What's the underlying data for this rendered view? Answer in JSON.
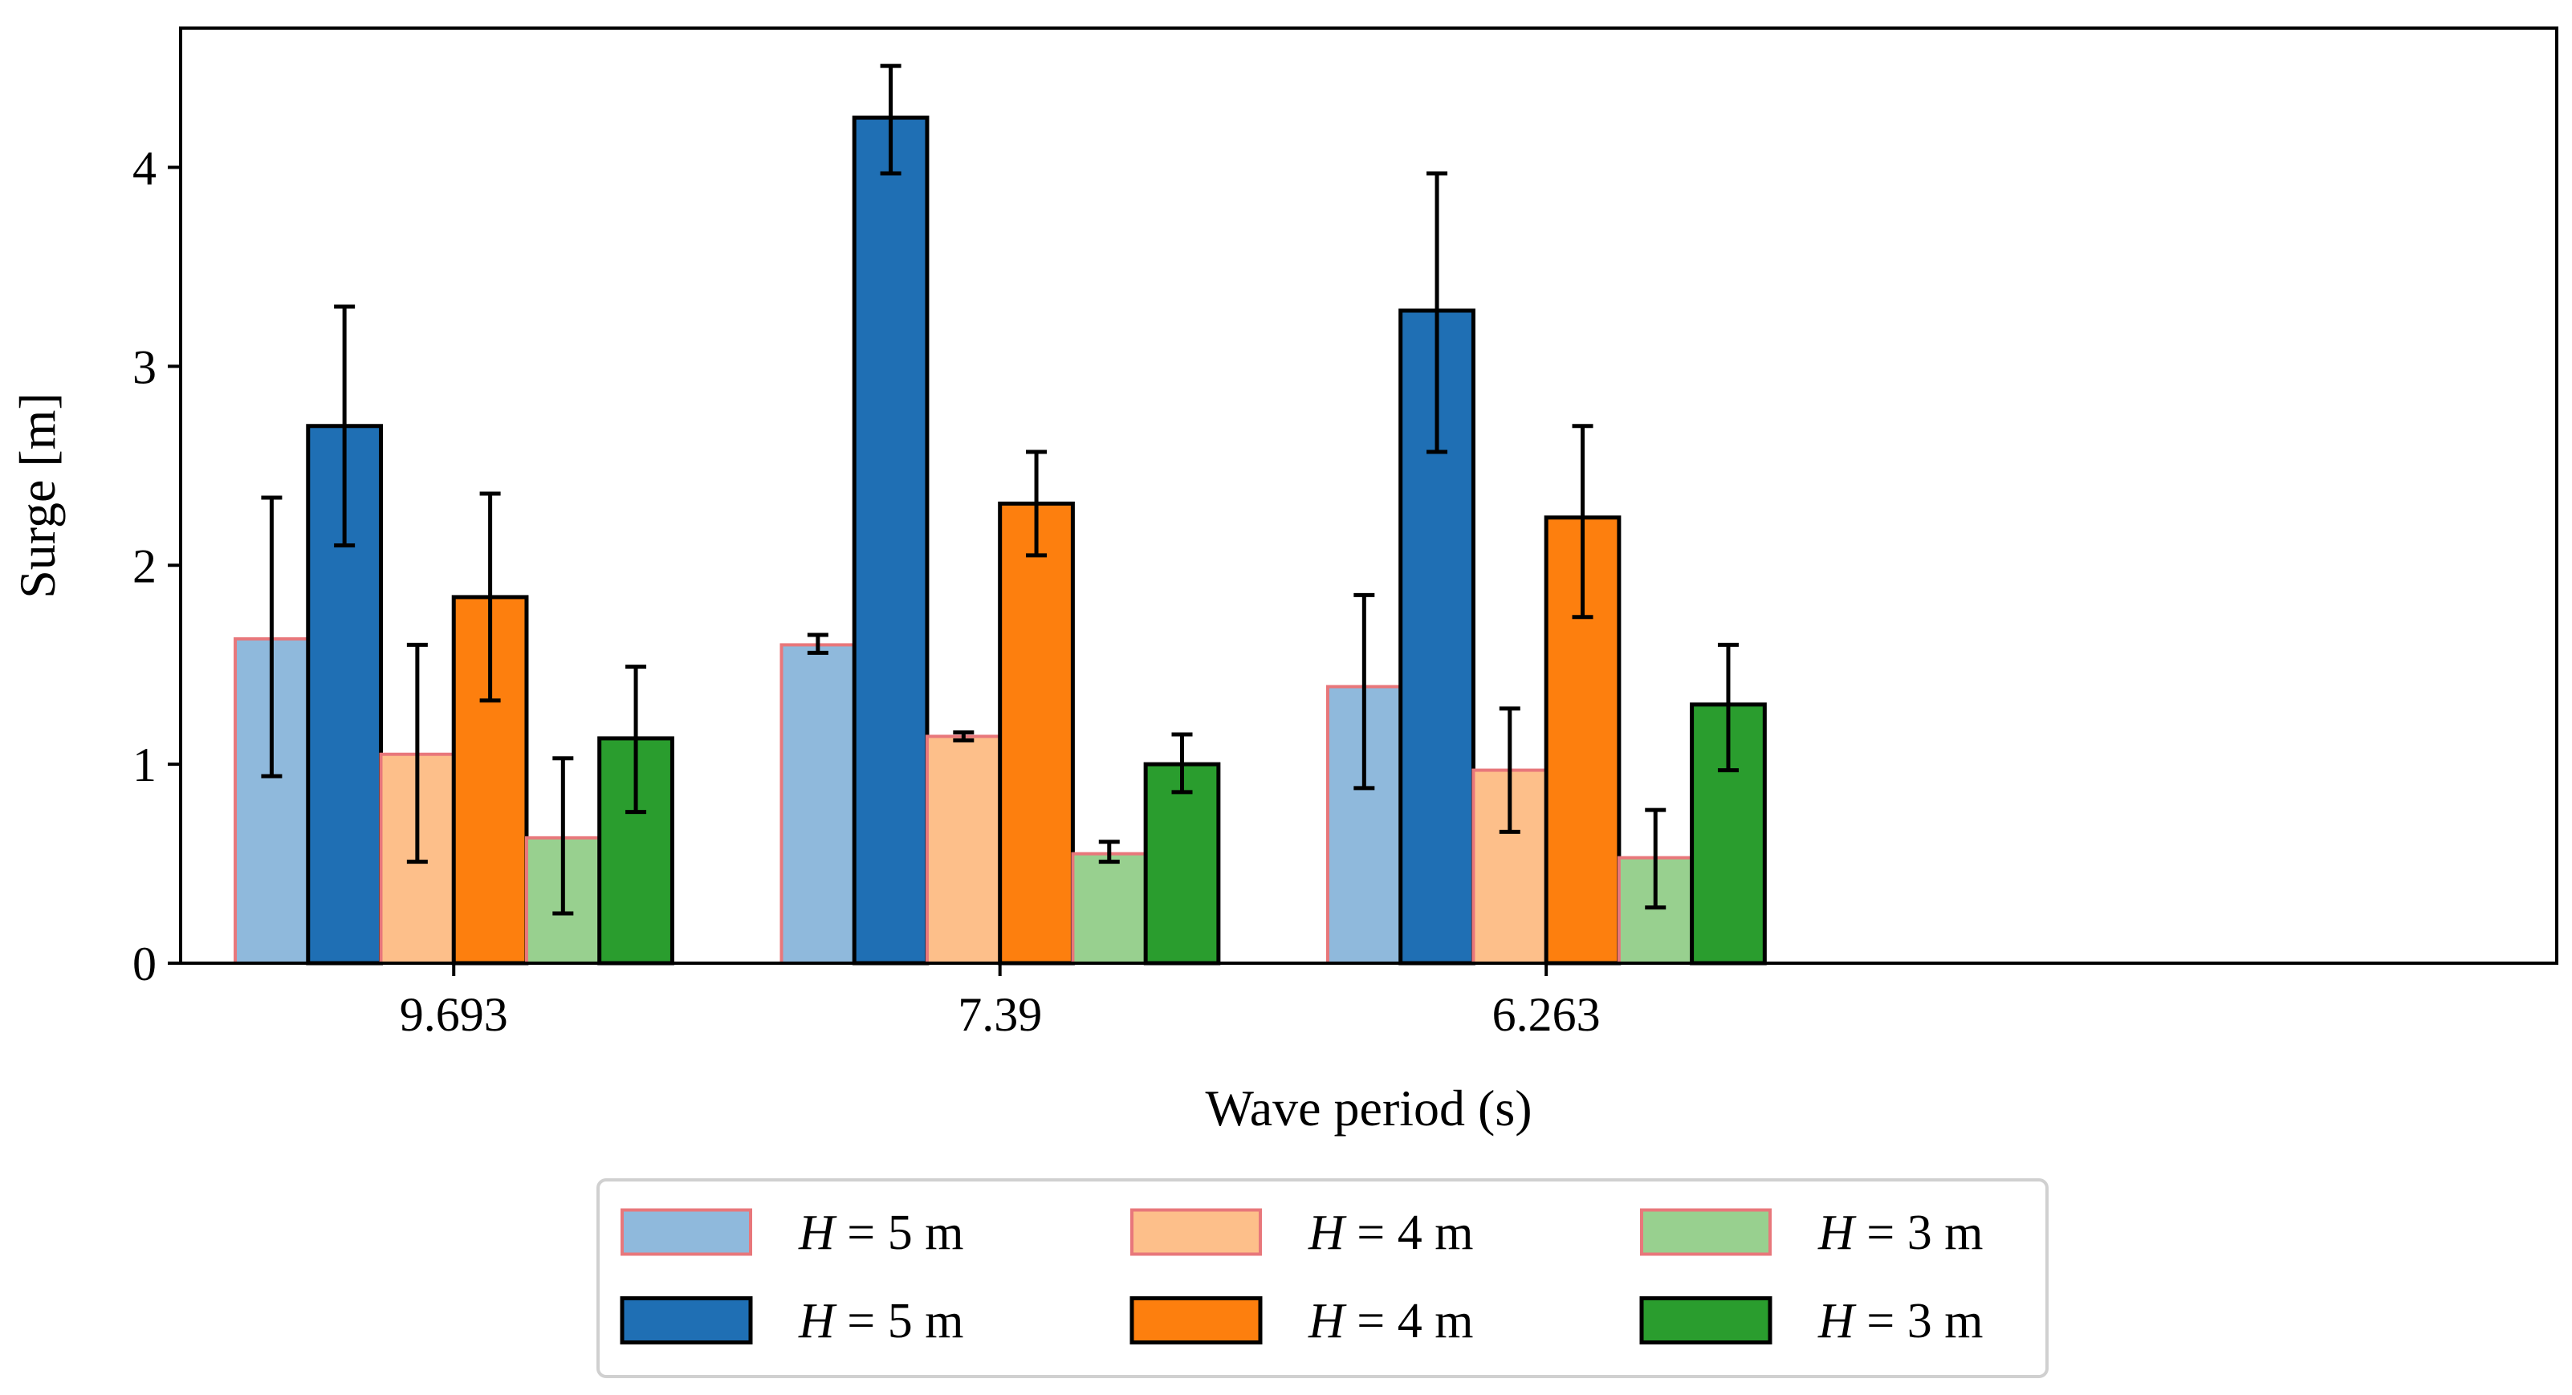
{
  "chart_data": {
    "type": "bar",
    "title": "",
    "xlabel": "Wave period (s)",
    "ylabel": "Surge [m]",
    "ylim": [
      0,
      4.7
    ],
    "yticks": [
      0,
      1,
      2,
      3,
      4
    ],
    "ytick_labels": [
      "0",
      "1",
      "2",
      "3",
      "4"
    ],
    "categories": [
      "9.693",
      "7.39",
      "6.263"
    ],
    "grid": false,
    "legend_position": "below",
    "series": [
      {
        "name": "H = 5 m",
        "legend_var": "H",
        "legend_rest": " = 5 m",
        "style": "light",
        "fill": "#8fb9dc",
        "edge": "#e8777b",
        "values": [
          1.63,
          1.6,
          1.39
        ],
        "err_low": [
          0.94,
          1.56,
          0.88
        ],
        "err_high": [
          2.34,
          1.65,
          1.85
        ]
      },
      {
        "name": "H = 5 m",
        "legend_var": "H",
        "legend_rest": " = 5 m",
        "style": "dark",
        "fill": "#1f6fb4",
        "edge": "#000000",
        "values": [
          2.7,
          4.25,
          3.28
        ],
        "err_low": [
          2.1,
          3.97,
          2.57
        ],
        "err_high": [
          3.3,
          4.51,
          3.97
        ]
      },
      {
        "name": "H = 4 m",
        "legend_var": "H",
        "legend_rest": " = 4 m",
        "style": "light",
        "fill": "#fdbf8a",
        "edge": "#e8777b",
        "values": [
          1.05,
          1.14,
          0.97
        ],
        "err_low": [
          0.51,
          1.12,
          0.66
        ],
        "err_high": [
          1.6,
          1.16,
          1.28
        ]
      },
      {
        "name": "H = 4 m",
        "legend_var": "H",
        "legend_rest": " = 4 m",
        "style": "dark",
        "fill": "#fd7f0e",
        "edge": "#000000",
        "values": [
          1.84,
          2.31,
          2.24
        ],
        "err_low": [
          1.32,
          2.05,
          1.74
        ],
        "err_high": [
          2.36,
          2.57,
          2.7
        ]
      },
      {
        "name": "H = 3 m",
        "legend_var": "H",
        "legend_rest": " = 3 m",
        "style": "light",
        "fill": "#98d08f",
        "edge": "#e8777b",
        "values": [
          0.63,
          0.55,
          0.53
        ],
        "err_low": [
          0.25,
          0.51,
          0.28
        ],
        "err_high": [
          1.03,
          0.61,
          0.77
        ]
      },
      {
        "name": "H = 3 m",
        "legend_var": "H",
        "legend_rest": " = 3 m",
        "style": "dark",
        "fill": "#2a9d2e",
        "edge": "#000000",
        "values": [
          1.13,
          1.0,
          1.3
        ],
        "err_low": [
          0.76,
          0.86,
          0.97
        ],
        "err_high": [
          1.49,
          1.15,
          1.6
        ]
      }
    ]
  }
}
